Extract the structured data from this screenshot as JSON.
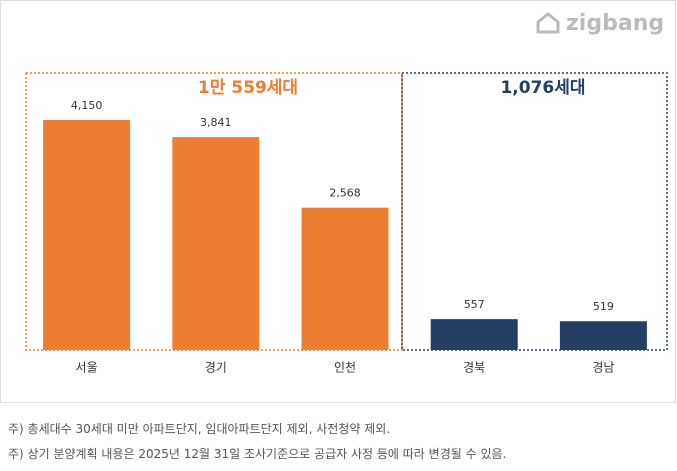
{
  "chart_data": {
    "type": "bar",
    "logo": "zigbang",
    "categories": [
      "서울",
      "경기",
      "인천",
      "경북",
      "경남"
    ],
    "values": [
      4150,
      3841,
      2568,
      557,
      519
    ],
    "value_labels": [
      "4,150",
      "3,841",
      "2,568",
      "557",
      "519"
    ],
    "colors": [
      "#ED7D31",
      "#ED7D31",
      "#ED7D31",
      "#243F66",
      "#243F66"
    ],
    "groups": [
      {
        "label": "1만 559세대",
        "color": "#ED7D31"
      },
      {
        "label": "1,076세대",
        "color": "#243F66"
      }
    ]
  },
  "footnotes": [
    "주) 총세대수 30세대 미만 아파트단지, 임대아파트단지 제외, 사전청약 제외.",
    "주) 상기 분양계획 내용은 2025년 12월 31일 조사기준으로 공급자 사정 등에 따라 변경될 수 있음."
  ]
}
